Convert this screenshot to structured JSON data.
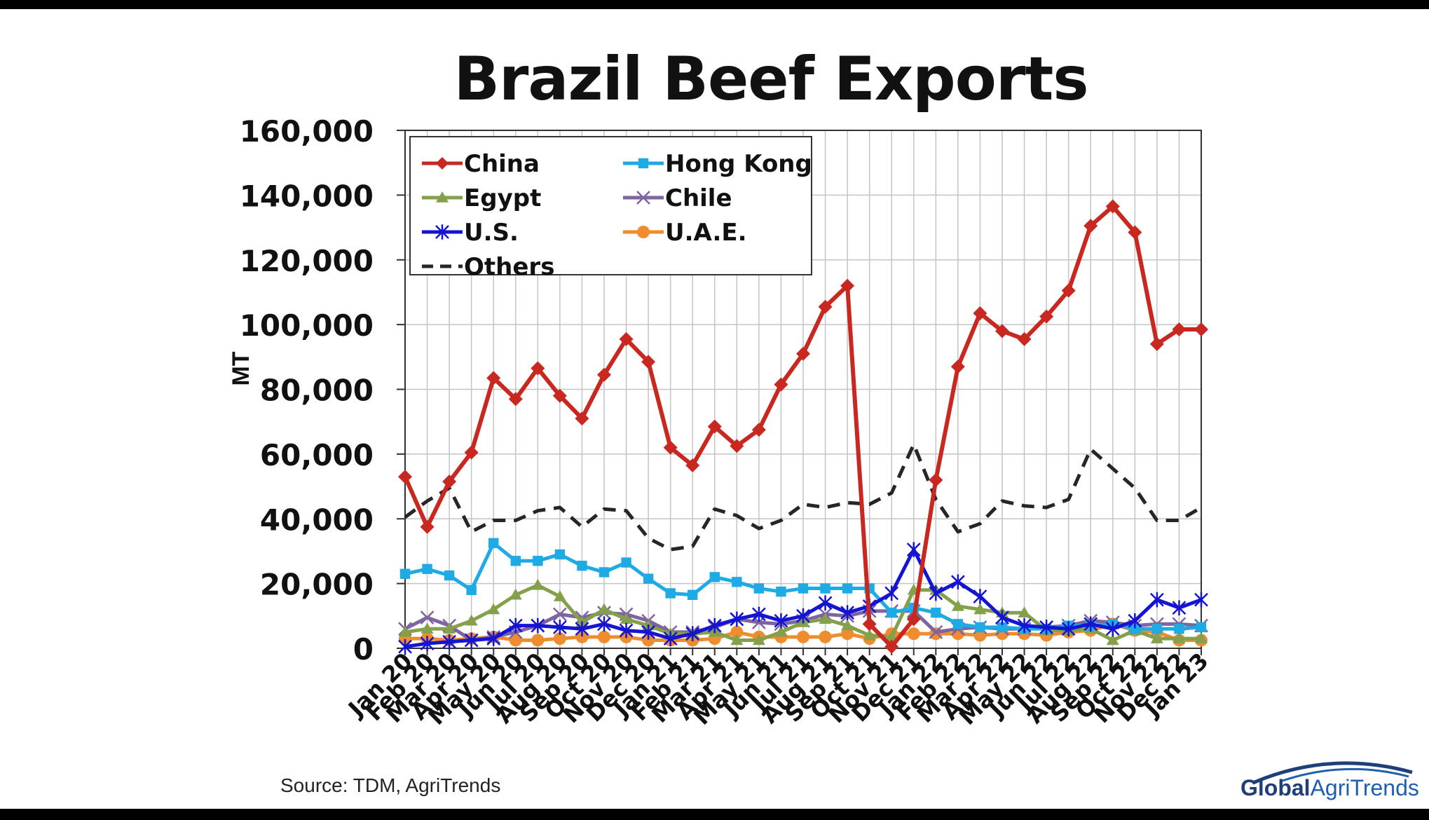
{
  "slide": {
    "title": "Brazil Beef Exports",
    "source": "Source: TDM, AgriTrends",
    "logo": {
      "part1": "Global",
      "part2": "AgriTrends"
    }
  },
  "colors": {
    "China": "#c8281f",
    "Hong Kong": "#1eaae4",
    "Egypt": "#84a04a",
    "Chile": "#7e64a0",
    "U.S.": "#1414d2",
    "U.A.E.": "#ee8c2e",
    "Others": "#262626"
  },
  "chart_data": {
    "type": "line",
    "title": "Brazil Beef Exports",
    "xlabel": "",
    "ylabel": "MT",
    "ylim": [
      0,
      160000
    ],
    "yticks": [
      "0",
      "20,000",
      "40,000",
      "60,000",
      "80,000",
      "100,000",
      "120,000",
      "140,000",
      "160,000"
    ],
    "grid": true,
    "legend_position": "top-left",
    "categories": [
      "Jan 20",
      "Feb 20",
      "Mar 20",
      "Apr 20",
      "May 20",
      "Jun 20",
      "Jul 20",
      "Aug 20",
      "Sep 20",
      "Oct 20",
      "Nov 20",
      "Dec 20",
      "Jan 21",
      "Feb 21",
      "Mar 21",
      "Apr 21",
      "May 21",
      "Jun 21",
      "Jul 21",
      "Aug 21",
      "Sep 21",
      "Oct 21",
      "Nov 21",
      "Dec 21",
      "Jan 22",
      "Feb 22",
      "Mar 22",
      "Apr 22",
      "May 22",
      "Jun 22",
      "Jul 22",
      "Aug 22",
      "Sep 22",
      "Oct 22",
      "Nov 22",
      "Dec 22",
      "Jan 23"
    ],
    "series": [
      {
        "name": "China",
        "marker": "diamond",
        "style": "solid",
        "values": [
          53000,
          37500,
          51500,
          60500,
          83500,
          77000,
          86500,
          78000,
          71000,
          84500,
          95500,
          88500,
          62000,
          56500,
          68500,
          62500,
          67500,
          81500,
          91000,
          105500,
          112000,
          7500,
          500,
          9000,
          52000,
          87000,
          103500,
          98000,
          95500,
          102500,
          110500,
          130500,
          136500,
          128500,
          94000,
          98500,
          98500
        ]
      },
      {
        "name": "Hong Kong",
        "marker": "square",
        "style": "solid",
        "values": [
          23000,
          24500,
          22500,
          18000,
          32500,
          27000,
          27000,
          29000,
          25500,
          23500,
          26500,
          21500,
          17000,
          16500,
          22000,
          20500,
          18500,
          17500,
          18500,
          18500,
          18500,
          18500,
          11000,
          12500,
          11000,
          7500,
          6500,
          6500,
          6000,
          6000,
          7000,
          7000,
          7500,
          6000,
          6000,
          6000,
          6500
        ]
      },
      {
        "name": "Egypt",
        "marker": "triangle",
        "style": "solid",
        "values": [
          5000,
          6000,
          6000,
          8500,
          12000,
          16500,
          19500,
          16000,
          8000,
          12000,
          9000,
          7000,
          4500,
          4500,
          5000,
          2500,
          2500,
          5000,
          8000,
          9000,
          7000,
          4000,
          3500,
          18000,
          18000,
          13000,
          12000,
          11000,
          11000,
          5500,
          5500,
          6000,
          2500,
          5500,
          3000,
          3000,
          3000
        ]
      },
      {
        "name": "Chile",
        "marker": "x",
        "style": "solid",
        "values": [
          6000,
          9500,
          7000,
          2500,
          3500,
          5000,
          7000,
          10500,
          9500,
          11000,
          10500,
          8500,
          5000,
          5000,
          6500,
          9000,
          8000,
          7500,
          8500,
          10500,
          10000,
          11500,
          11500,
          11500,
          5000,
          6000,
          6500,
          6000,
          6000,
          6500,
          7000,
          8500,
          8000,
          7000,
          7500,
          7500,
          7000
        ]
      },
      {
        "name": "U.S.",
        "marker": "star",
        "style": "solid",
        "values": [
          500,
          1500,
          2000,
          2500,
          3000,
          7000,
          7000,
          6500,
          6000,
          7500,
          5500,
          5000,
          3000,
          4500,
          7000,
          9000,
          10500,
          8500,
          10000,
          14000,
          11000,
          13000,
          17000,
          30500,
          17000,
          20500,
          16000,
          9500,
          7000,
          6500,
          6000,
          7500,
          6000,
          8500,
          15000,
          12500,
          15000
        ]
      },
      {
        "name": "U.A.E.",
        "marker": "circle",
        "style": "solid",
        "values": [
          3000,
          3000,
          2500,
          3000,
          3500,
          2500,
          2500,
          3000,
          3500,
          3500,
          3500,
          2500,
          2500,
          2500,
          3000,
          5000,
          3500,
          3500,
          3500,
          3500,
          4500,
          3000,
          4500,
          4500,
          4500,
          4500,
          4000,
          4500,
          4500,
          4000,
          5000,
          5500,
          7500,
          5500,
          5000,
          2500,
          2500
        ]
      },
      {
        "name": "Others",
        "marker": "none",
        "style": "dashed",
        "values": [
          40500,
          45500,
          49500,
          36000,
          39500,
          39500,
          42500,
          43500,
          37500,
          43000,
          42500,
          34000,
          30500,
          31500,
          43000,
          41000,
          37000,
          39500,
          44500,
          43500,
          45000,
          44500,
          48000,
          63000,
          46000,
          36000,
          38500,
          45500,
          44000,
          43500,
          46000,
          61500,
          55500,
          49500,
          39500,
          39500,
          43500
        ]
      }
    ]
  }
}
